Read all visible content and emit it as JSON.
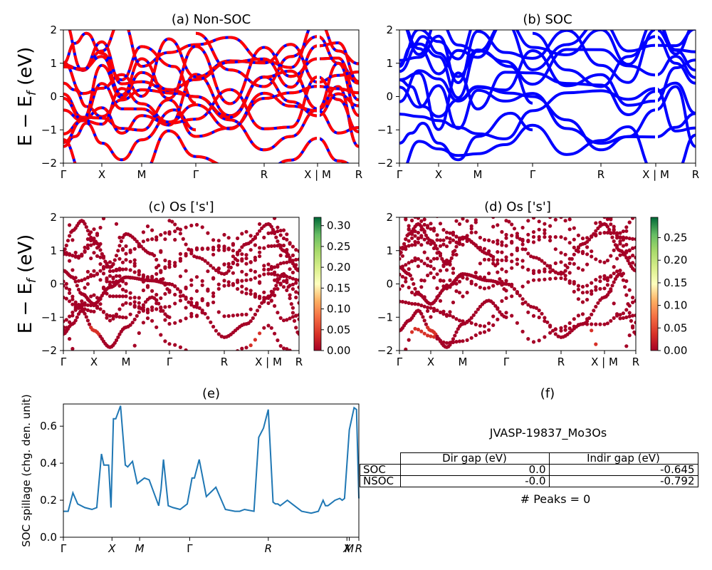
{
  "colors": {
    "spin_up": "#0000ff",
    "spin_dn": "#ff0000",
    "soc": "#0000ff",
    "spillage_line": "#1f77b4",
    "proj_low": "#a50026",
    "proj_high": "#006837"
  },
  "kpath_labels": [
    "Γ",
    "X",
    "M",
    "Γ",
    "R",
    "X | M",
    "R"
  ],
  "chart_data": [
    {
      "panel": "a",
      "type": "line",
      "title": "(a) Non-SOC",
      "ylabel": "E − E_f (eV)",
      "ylim": [
        -2,
        2
      ],
      "yticks": [
        "2",
        "1",
        "0",
        "−1",
        "−2"
      ],
      "series": [
        {
          "x": [
            0,
            0.3,
            0.6,
            1.0,
            1.5,
            2.0,
            2.6,
            3.0
          ],
          "y": [
            1.0,
            1.6,
            1.9,
            1.3,
            0.5,
            1.5,
            0.9,
            -0.2
          ]
        },
        {
          "x": [
            0,
            0.3,
            0.6,
            1.0,
            1.5,
            2.0,
            2.6,
            3.0
          ],
          "y": [
            0.4,
            0.2,
            -0.3,
            -0.6,
            -0.1,
            0.2,
            0.1,
            0.0
          ]
        },
        {
          "x": [
            0,
            0.3,
            0.6,
            1.0,
            1.5,
            2.0,
            2.6,
            3.0
          ],
          "y": [
            -1.5,
            -1.2,
            -0.8,
            -1.4,
            -1.9,
            -1.3,
            -0.4,
            -1.0
          ]
        },
        {
          "x": [
            3.0,
            3.5,
            4.0,
            4.5,
            5.0,
            5.5,
            6.0
          ],
          "y": [
            0.0,
            -0.7,
            -1.6,
            -1.2,
            -0.4,
            0.3,
            -1.5
          ]
        },
        {
          "x": [
            3.0,
            3.5,
            4.0,
            4.5,
            5.0,
            5.5,
            6.0
          ],
          "y": [
            1.9,
            0.8,
            0.3,
            1.2,
            1.8,
            1.0,
            0.4
          ]
        }
      ]
    },
    {
      "panel": "b",
      "type": "line",
      "title": "(b) SOC",
      "ylim": [
        -2,
        2
      ],
      "yticks": [
        "2",
        "1",
        "0",
        "−1",
        "−2"
      ],
      "series": [
        {
          "x": [
            0,
            0.3,
            0.6,
            1.0,
            1.5,
            2.0,
            2.6,
            3.0
          ],
          "y": [
            0.9,
            1.5,
            1.8,
            1.3,
            0.6,
            1.4,
            0.9,
            -0.2
          ]
        },
        {
          "x": [
            0,
            0.3,
            0.6,
            1.0,
            1.5,
            2.0,
            2.6,
            3.0
          ],
          "y": [
            0.5,
            0.3,
            -0.3,
            -0.6,
            -0.1,
            0.3,
            0.1,
            0.0
          ]
        },
        {
          "x": [
            0,
            0.3,
            0.6,
            1.0,
            1.5,
            2.0,
            2.6,
            3.0
          ],
          "y": [
            -1.4,
            -1.1,
            -0.8,
            -1.4,
            -1.9,
            -1.2,
            -0.5,
            -1.0
          ]
        },
        {
          "x": [
            3.0,
            3.5,
            4.0,
            4.5,
            5.0,
            5.5,
            6.0
          ],
          "y": [
            0.0,
            -0.7,
            -1.6,
            -1.2,
            -0.4,
            0.3,
            -1.5
          ]
        },
        {
          "x": [
            3.0,
            3.5,
            4.0,
            4.5,
            5.0,
            5.5,
            6.0
          ],
          "y": [
            1.9,
            0.8,
            0.3,
            1.2,
            1.8,
            1.0,
            0.4
          ]
        }
      ]
    },
    {
      "panel": "c",
      "type": "scatter",
      "title": "(c)  Os ['s']",
      "ylabel": "E − E_f (eV)",
      "ylim": [
        -2,
        2
      ],
      "yticks": [
        "2",
        "1",
        "0",
        "−1",
        "−2"
      ],
      "colorbar": {
        "range": [
          0,
          0.32
        ],
        "ticks": [
          "0.00",
          "0.05",
          "0.10",
          "0.15",
          "0.20",
          "0.25",
          "0.30"
        ]
      }
    },
    {
      "panel": "d",
      "type": "scatter",
      "title": "(d) Os ['s']",
      "ylim": [
        -2,
        2
      ],
      "yticks": [
        "2",
        "1",
        "0",
        "−1",
        "−2"
      ],
      "colorbar": {
        "range": [
          0,
          0.295
        ],
        "ticks": [
          "0.00",
          "0.05",
          "0.10",
          "0.15",
          "0.20",
          "0.25"
        ]
      }
    },
    {
      "panel": "e",
      "type": "line",
      "title": "(e)",
      "ylabel": "SOC spillage (chg. den. unit)",
      "ylim": [
        0,
        0.72
      ],
      "yticks": [
        "0.0",
        "0.2",
        "0.4",
        "0.6"
      ],
      "xlabels": [
        "Γ",
        "X",
        "M",
        "Γ",
        "R",
        "X",
        "M",
        "R"
      ],
      "series": [
        {
          "name": "spillage",
          "x": [
            0,
            0.1,
            0.2,
            0.3,
            0.45,
            0.6,
            0.7,
            0.8,
            0.85,
            0.95,
            1.0,
            1.05,
            1.1,
            1.2,
            1.3,
            1.35,
            1.45,
            1.55,
            1.7,
            1.8,
            1.9,
            2.0,
            2.05,
            2.1,
            2.2,
            2.3,
            2.45,
            2.6,
            2.7,
            2.75,
            2.85,
            3.0,
            3.2,
            3.4,
            3.6,
            3.7,
            3.8,
            4.0,
            4.1,
            4.2,
            4.3,
            4.4,
            4.45,
            4.5,
            4.55,
            4.7,
            4.8,
            5.0,
            5.2,
            5.35,
            5.45,
            5.5,
            5.55,
            5.6,
            5.7,
            5.8,
            5.85,
            5.9,
            6.0,
            6.1,
            6.15,
            6.2
          ],
          "y": [
            0.14,
            0.14,
            0.24,
            0.18,
            0.16,
            0.15,
            0.16,
            0.45,
            0.39,
            0.39,
            0.16,
            0.64,
            0.64,
            0.71,
            0.39,
            0.38,
            0.41,
            0.29,
            0.32,
            0.31,
            0.24,
            0.17,
            0.26,
            0.42,
            0.17,
            0.16,
            0.15,
            0.18,
            0.32,
            0.32,
            0.42,
            0.22,
            0.27,
            0.15,
            0.14,
            0.14,
            0.15,
            0.14,
            0.54,
            0.59,
            0.69,
            0.19,
            0.18,
            0.18,
            0.17,
            0.2,
            0.18,
            0.14,
            0.13,
            0.14,
            0.2,
            0.17,
            0.17,
            0.18,
            0.2,
            0.21,
            0.2,
            0.21,
            0.58,
            0.7,
            0.69,
            0.21
          ]
        }
      ]
    },
    {
      "panel": "f",
      "type": "table",
      "title": "(f)",
      "material": "JVASP-19837_Mo3Os",
      "columns": [
        "Dir gap (eV)",
        "Indir gap (eV)"
      ],
      "rows": [
        {
          "label": "SOC",
          "dir": "0.0",
          "indir": "-0.645"
        },
        {
          "label": "NSOC",
          "dir": "-0.0",
          "indir": "-0.792"
        }
      ],
      "peaks_text": "# Peaks = 0"
    }
  ]
}
